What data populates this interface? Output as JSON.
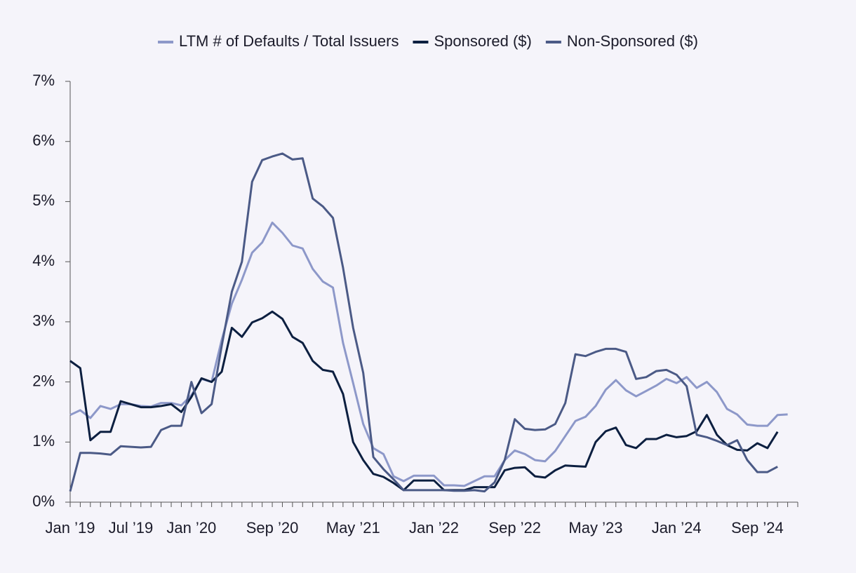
{
  "chart_data": {
    "type": "line",
    "categories": [
      "Jan ’19",
      null,
      null,
      null,
      null,
      null,
      "Jul ’19",
      null,
      null,
      null,
      null,
      null,
      "Jan ’20",
      null,
      null,
      null,
      null,
      null,
      null,
      null,
      "Sep ’20",
      null,
      null,
      null,
      null,
      null,
      null,
      null,
      "May ’21",
      null,
      null,
      null,
      null,
      null,
      null,
      null,
      "Jan ’22",
      null,
      null,
      null,
      null,
      null,
      null,
      null,
      "Sep ’22",
      null,
      null,
      null,
      null,
      null,
      null,
      null,
      "May ’23",
      null,
      null,
      null,
      null,
      null,
      null,
      null,
      "Jan ’24",
      null,
      null,
      null,
      null,
      null,
      null,
      null,
      "Sep ’24",
      null,
      null,
      null
    ],
    "series": [
      {
        "name": "LTM # of Defaults / Total Issuers",
        "color": "#8d98c9",
        "values": [
          1.45,
          1.53,
          1.4,
          1.6,
          1.55,
          1.63,
          1.63,
          1.6,
          1.59,
          1.65,
          1.65,
          1.61,
          1.78,
          2.05,
          2.0,
          2.7,
          3.3,
          3.7,
          4.15,
          4.32,
          4.65,
          4.48,
          4.27,
          4.22,
          3.88,
          3.67,
          3.57,
          2.65,
          1.98,
          1.3,
          0.9,
          0.8,
          0.43,
          0.35,
          0.44,
          0.44,
          0.44,
          0.28,
          0.28,
          0.27,
          0.35,
          0.43,
          0.43,
          0.7,
          0.86,
          0.8,
          0.7,
          0.68,
          0.85,
          1.1,
          1.35,
          1.42,
          1.6,
          1.87,
          2.03,
          1.86,
          1.76,
          1.85,
          1.94,
          2.05,
          1.98,
          2.08,
          1.9,
          2.0,
          1.83,
          1.55,
          1.46,
          1.29,
          1.27,
          1.27,
          1.45,
          1.46
        ]
      },
      {
        "name": "Sponsored ($)",
        "color": "#0c1f40",
        "values": [
          2.35,
          2.23,
          1.03,
          1.17,
          1.17,
          1.68,
          1.63,
          1.58,
          1.58,
          1.6,
          1.63,
          1.5,
          1.75,
          2.06,
          2.0,
          2.17,
          2.9,
          2.75,
          2.99,
          3.06,
          3.17,
          3.05,
          2.75,
          2.65,
          2.35,
          2.2,
          2.17,
          1.8,
          1.0,
          0.7,
          0.47,
          0.42,
          0.32,
          0.2,
          0.36,
          0.36,
          0.36,
          0.2,
          0.2,
          0.2,
          0.25,
          0.25,
          0.25,
          0.53,
          0.57,
          0.58,
          0.43,
          0.41,
          0.53,
          0.61,
          0.6,
          0.59,
          1.0,
          1.18,
          1.24,
          0.95,
          0.9,
          1.05,
          1.05,
          1.12,
          1.08,
          1.1,
          1.18,
          1.45,
          1.12,
          0.95,
          0.87,
          0.86,
          0.98,
          0.9,
          1.17,
          null
        ]
      },
      {
        "name": "Non-Sponsored ($)",
        "color": "#4b5a86",
        "values": [
          0.18,
          0.82,
          0.82,
          0.81,
          0.79,
          0.93,
          0.92,
          0.91,
          0.92,
          1.2,
          1.27,
          1.27,
          2.0,
          1.48,
          1.63,
          2.6,
          3.5,
          4.0,
          5.33,
          5.69,
          5.75,
          5.8,
          5.7,
          5.72,
          5.05,
          4.92,
          4.73,
          3.9,
          2.9,
          2.15,
          0.75,
          0.55,
          0.38,
          0.2,
          0.2,
          0.2,
          0.2,
          0.2,
          0.19,
          0.19,
          0.2,
          0.18,
          0.33,
          0.7,
          1.38,
          1.22,
          1.2,
          1.21,
          1.3,
          1.65,
          2.46,
          2.43,
          2.5,
          2.55,
          2.55,
          2.5,
          2.05,
          2.08,
          2.18,
          2.2,
          2.12,
          1.93,
          1.12,
          1.08,
          1.02,
          0.95,
          1.03,
          0.7,
          0.5,
          0.5,
          0.59,
          null
        ]
      }
    ],
    "ylim": [
      0,
      7
    ],
    "yticks": [
      {
        "value": 0,
        "label": "0%"
      },
      {
        "value": 1,
        "label": "1%"
      },
      {
        "value": 2,
        "label": "2%"
      },
      {
        "value": 3,
        "label": "3%"
      },
      {
        "value": 4,
        "label": "4%"
      },
      {
        "value": 5,
        "label": "5%"
      },
      {
        "value": 6,
        "label": "6%"
      },
      {
        "value": 7,
        "label": "7%"
      }
    ],
    "legend": "top",
    "grid": false
  }
}
